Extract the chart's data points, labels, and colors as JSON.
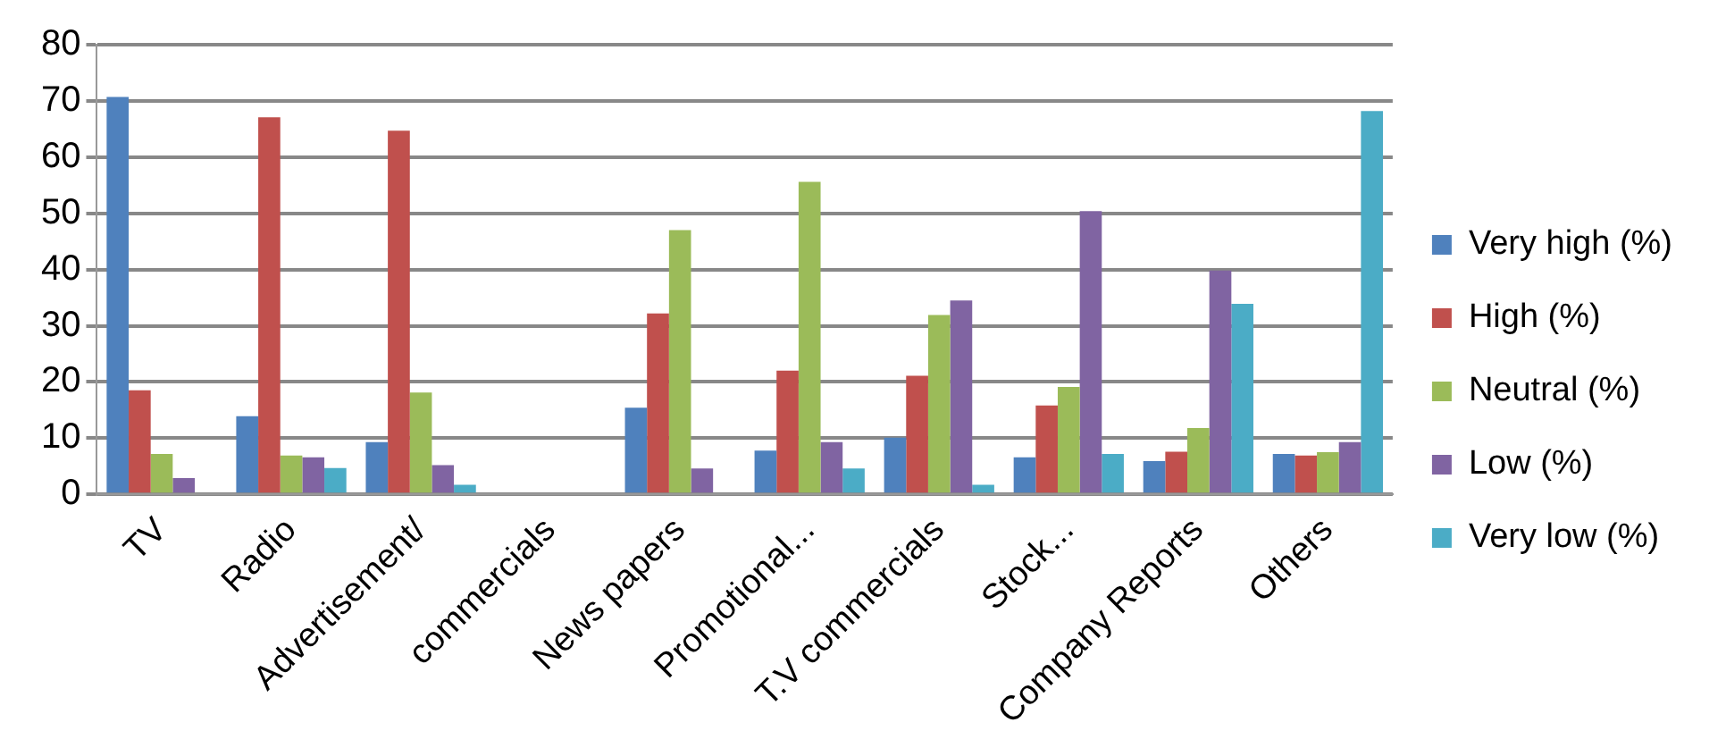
{
  "chart_data": {
    "type": "bar",
    "categories": [
      "TV",
      "Radio",
      "Advertisement/",
      "commercials",
      "News papers",
      "Promotional...",
      "T.V commercials",
      "Stock...",
      "Company Reports",
      "Others"
    ],
    "series": [
      {
        "name": "Very high (%)",
        "color": "#4f81bd",
        "values": [
          70.7,
          13.9,
          9.3,
          null,
          15.4,
          7.8,
          10.1,
          6.6,
          5.9,
          7.2
        ]
      },
      {
        "name": "High (%)",
        "color": "#c0504d",
        "values": [
          18.5,
          67.1,
          64.7,
          null,
          32.2,
          22,
          21.1,
          15.8,
          7.6,
          6.9
        ]
      },
      {
        "name": "Neutral (%)",
        "color": "#9bbb59",
        "values": [
          7.2,
          6.9,
          18.1,
          null,
          47,
          55.6,
          31.9,
          19.1,
          11.8,
          7.5
        ]
      },
      {
        "name": "Low (%)",
        "color": "#8064a2",
        "values": [
          2.9,
          6.6,
          5.2,
          null,
          4.6,
          9.3,
          34.5,
          50.4,
          39.8,
          9.3
        ]
      },
      {
        "name": "Very low (%)",
        "color": "#4bacc6",
        "values": [
          0,
          4.7,
          1.7,
          null,
          0,
          4.6,
          1.7,
          7.2,
          33.9,
          68.2
        ]
      }
    ],
    "ylim": [
      0,
      80
    ],
    "yticks": [
      0,
      10,
      20,
      30,
      40,
      50,
      60,
      70,
      80
    ],
    "grid": "y",
    "legend": "right"
  }
}
